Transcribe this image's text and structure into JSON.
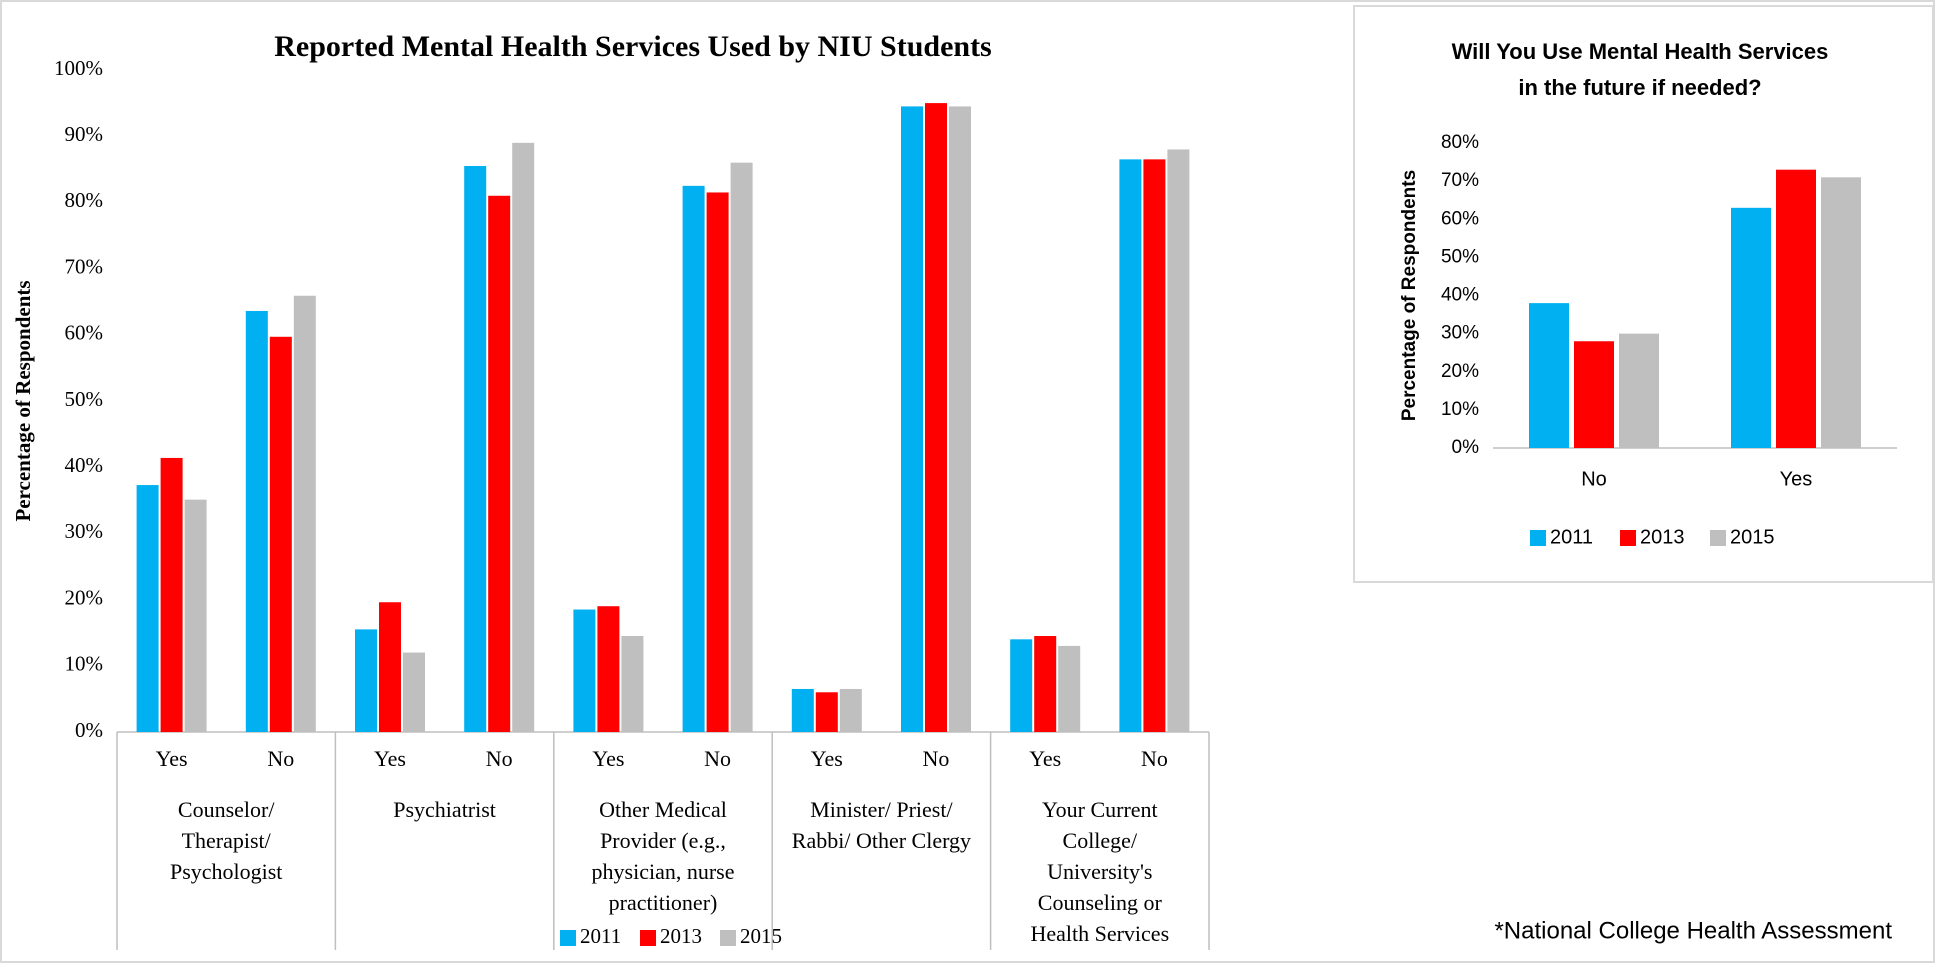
{
  "chart_data": [
    {
      "type": "bar",
      "title": "Reported Mental Health Services Used by NIU Students",
      "y_label": "Percentage of Respondents",
      "categories": [
        "Yes",
        "No",
        "Yes",
        "No",
        "Yes",
        "No",
        "Yes",
        "No",
        "Yes",
        "No"
      ],
      "groups": [
        [
          "Counselor/",
          "Therapist/",
          "Psychologist"
        ],
        [
          "Psychiatrist"
        ],
        [
          "Other Medical",
          "Provider (e.g.,",
          "physician, nurse",
          "practitioner)"
        ],
        [
          "Minister/ Priest/",
          "Rabbi/ Other Clergy"
        ],
        [
          "Your Current",
          "College/",
          "University's",
          "Counseling or",
          "Health Services"
        ]
      ],
      "series": [
        {
          "name": "2011",
          "color": "#00b0f0",
          "values": [
            37.3,
            63.6,
            15.5,
            85.5,
            18.5,
            82.5,
            6.5,
            94.5,
            14,
            86.5
          ]
        },
        {
          "name": "2013",
          "color": "#ff0000",
          "values": [
            41.4,
            59.7,
            19.6,
            81,
            19,
            81.5,
            6,
            95,
            14.5,
            86.5
          ]
        },
        {
          "name": "2015",
          "color": "#bfbfbf",
          "values": [
            35.1,
            65.9,
            12,
            89,
            14.5,
            86,
            6.5,
            94.5,
            13,
            88
          ]
        }
      ],
      "ylim": [
        0,
        100
      ],
      "yticks": [
        {
          "value": 0,
          "label": "0%"
        },
        {
          "value": 10,
          "label": "10%"
        },
        {
          "value": 20,
          "label": "20%"
        },
        {
          "value": 30,
          "label": "30%"
        },
        {
          "value": 40,
          "label": "40%"
        },
        {
          "value": 50,
          "label": "50%"
        },
        {
          "value": 60,
          "label": "60%"
        },
        {
          "value": 70,
          "label": "70%"
        },
        {
          "value": 80,
          "label": "80%"
        },
        {
          "value": 90,
          "label": "90%"
        },
        {
          "value": 100,
          "label": "100%"
        }
      ],
      "grid": false,
      "legend": "bottom"
    },
    {
      "type": "bar",
      "title": [
        "Will You Use Mental Health Services",
        "in the future if needed?"
      ],
      "y_label": "Percentage of Respondents",
      "categories": [
        "No",
        "Yes"
      ],
      "series": [
        {
          "name": "2011",
          "color": "#00b0f0",
          "values": [
            38,
            63
          ]
        },
        {
          "name": "2013",
          "color": "#ff0000",
          "values": [
            28,
            73
          ]
        },
        {
          "name": "2015",
          "color": "#bfbfbf",
          "values": [
            30,
            71
          ]
        }
      ],
      "ylim": [
        0,
        80
      ],
      "yticks": [
        {
          "value": 0,
          "label": "0%"
        },
        {
          "value": 10,
          "label": "10%"
        },
        {
          "value": 20,
          "label": "20%"
        },
        {
          "value": 30,
          "label": "30%"
        },
        {
          "value": 40,
          "label": "40%"
        },
        {
          "value": 50,
          "label": "50%"
        },
        {
          "value": 60,
          "label": "60%"
        },
        {
          "value": 70,
          "label": "70%"
        },
        {
          "value": 80,
          "label": "80%"
        }
      ],
      "grid": false,
      "legend": "bottom"
    }
  ],
  "footnote": "*National College Health Assessment"
}
